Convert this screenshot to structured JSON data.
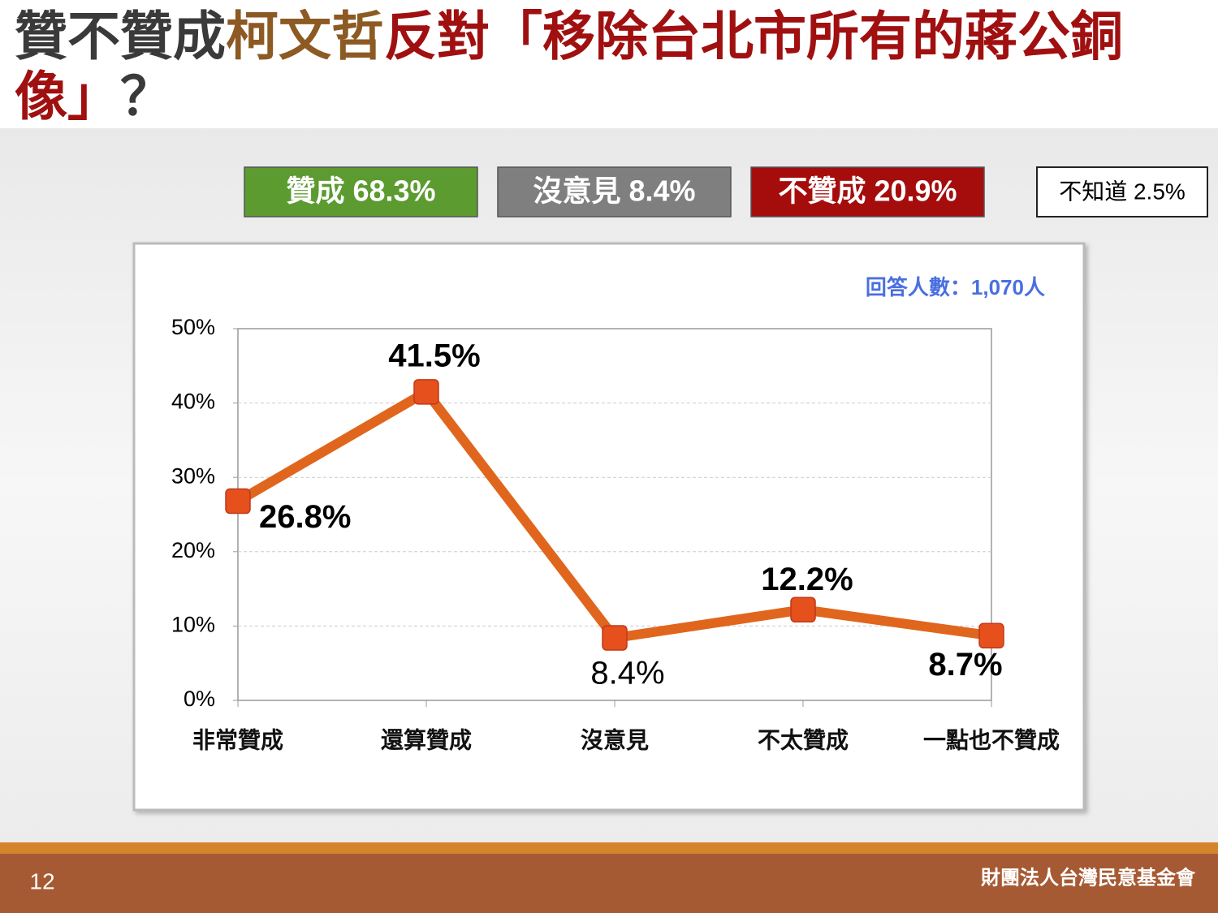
{
  "chart_data": {
    "type": "line",
    "title": [
      {
        "text": "贊不贊成",
        "color": "#3a3a3a"
      },
      {
        "text": "柯文哲",
        "color": "#8c5a22"
      },
      {
        "text": "反對「移除台北市所有的蔣公銅像」",
        "color": "#a01010"
      },
      {
        "text": "？",
        "color": "#3a3a3a"
      }
    ],
    "summary": [
      {
        "text": "贊成 68.3%",
        "color": "#5b9b2f",
        "text_color": "#ffffff"
      },
      {
        "text": "沒意見 8.4%",
        "color": "#7f7f7f",
        "text_color": "#ffffff"
      },
      {
        "text": "不贊成 20.9%",
        "color": "#a50d0d",
        "text_color": "#ffffff"
      },
      {
        "text": "不知道 2.5%",
        "color": "#ffffff",
        "text_color": "#000000"
      }
    ],
    "annotation": "回答人數：1,070人",
    "categories": [
      "非常贊成",
      "還算贊成",
      "沒意見",
      "不太贊成",
      "一點也不贊成"
    ],
    "series": [
      {
        "name": "比例",
        "color": "#e0661e",
        "marker_color": "#e5501d",
        "values": [
          26.8,
          41.5,
          8.4,
          12.2,
          8.7
        ],
        "value_labels": [
          "26.8%",
          "41.5%",
          "8.4%",
          "12.2%",
          "8.7%"
        ]
      }
    ],
    "ylim": [
      0,
      50
    ],
    "yticks": [
      {
        "value": 0,
        "label": "0%"
      },
      {
        "value": 10,
        "label": "10%"
      },
      {
        "value": 20,
        "label": "20%"
      },
      {
        "value": 30,
        "label": "30%"
      },
      {
        "value": 40,
        "label": "40%"
      },
      {
        "value": 50,
        "label": "50%"
      }
    ],
    "grid": true,
    "footer": {
      "page": "12",
      "organization": "財團法人台灣民意基金會"
    }
  }
}
